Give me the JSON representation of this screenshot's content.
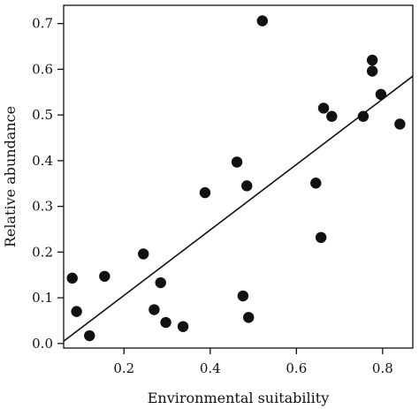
{
  "chart_data": {
    "type": "scatter",
    "xlabel": "Environmental suitability",
    "ylabel": "Relative abundance",
    "xlim": [
      0.06,
      0.87
    ],
    "ylim": [
      -0.01,
      0.74
    ],
    "xticks": [
      0.2,
      0.4,
      0.6,
      0.8
    ],
    "xtick_labels": [
      "0.2",
      "0.4",
      "0.6",
      "0.8"
    ],
    "yticks": [
      0.0,
      0.1,
      0.2,
      0.3,
      0.4,
      0.5,
      0.6,
      0.7
    ],
    "ytick_labels": [
      "0.0",
      "0.1",
      "0.2",
      "0.3",
      "0.4",
      "0.5",
      "0.6",
      "0.7"
    ],
    "grid": false,
    "legend": "none",
    "points": [
      {
        "x": 0.08,
        "y": 0.143
      },
      {
        "x": 0.09,
        "y": 0.07
      },
      {
        "x": 0.12,
        "y": 0.017
      },
      {
        "x": 0.155,
        "y": 0.147
      },
      {
        "x": 0.245,
        "y": 0.196
      },
      {
        "x": 0.27,
        "y": 0.074
      },
      {
        "x": 0.285,
        "y": 0.133
      },
      {
        "x": 0.297,
        "y": 0.046
      },
      {
        "x": 0.337,
        "y": 0.037
      },
      {
        "x": 0.388,
        "y": 0.33
      },
      {
        "x": 0.462,
        "y": 0.397
      },
      {
        "x": 0.476,
        "y": 0.104
      },
      {
        "x": 0.485,
        "y": 0.345
      },
      {
        "x": 0.489,
        "y": 0.057
      },
      {
        "x": 0.521,
        "y": 0.706
      },
      {
        "x": 0.645,
        "y": 0.351
      },
      {
        "x": 0.657,
        "y": 0.232
      },
      {
        "x": 0.663,
        "y": 0.515
      },
      {
        "x": 0.682,
        "y": 0.497
      },
      {
        "x": 0.755,
        "y": 0.497
      },
      {
        "x": 0.776,
        "y": 0.62
      },
      {
        "x": 0.776,
        "y": 0.596
      },
      {
        "x": 0.796,
        "y": 0.545
      },
      {
        "x": 0.84,
        "y": 0.48
      }
    ],
    "fit_line": {
      "type": "linear",
      "x": [
        0.06,
        0.87
      ],
      "y": [
        0.005,
        0.585
      ]
    },
    "colors": {
      "points": "#111111",
      "line": "#111111",
      "axes": "#111111"
    }
  }
}
